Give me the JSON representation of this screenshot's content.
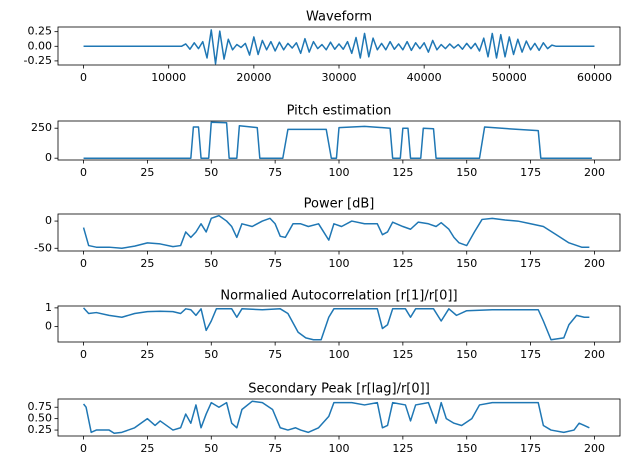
{
  "chart_data": [
    {
      "type": "line",
      "title": "Waveform",
      "x": [
        0,
        500,
        1000,
        1500,
        2000,
        2500,
        3000,
        3500,
        4000,
        4500,
        5000,
        5500,
        6000,
        6500,
        7000,
        7500,
        8000,
        8500,
        9000,
        9500,
        10000,
        10500,
        11000,
        11500,
        12000,
        12500,
        13000,
        13500,
        14000,
        14500,
        15000,
        15500,
        16000,
        16500,
        17000,
        17500,
        18000,
        18500,
        19000,
        19500,
        20000,
        20500,
        21000,
        21500,
        22000,
        22500,
        23000,
        23500,
        24000,
        24500,
        25000,
        25500,
        26000,
        26500,
        27000,
        27500,
        28000,
        28500,
        29000,
        29500,
        30000,
        30500,
        31000,
        31500,
        32000,
        32500,
        33000,
        33500,
        34000,
        34500,
        35000,
        35500,
        36000,
        36500,
        37000,
        37500,
        38000,
        38500,
        39000,
        39500,
        40000,
        40500,
        41000,
        41500,
        42000,
        42500,
        43000,
        43500,
        44000,
        44500,
        45000,
        45500,
        46000,
        46500,
        47000,
        47500,
        48000,
        48500,
        49000,
        49500,
        50000,
        50500,
        51000,
        51500,
        52000,
        52500,
        53000,
        53500,
        54000,
        54500,
        55000,
        55500,
        56000,
        56500,
        57000,
        57500,
        58000,
        58500,
        59000,
        59500,
        60000
      ],
      "series": [
        {
          "color": "#1f77b4",
          "values": [
            0,
            0,
            0,
            0,
            0,
            0,
            0,
            0,
            0,
            0,
            0,
            0,
            0,
            0,
            0,
            0,
            0,
            0,
            0,
            0,
            0,
            0,
            0,
            0,
            0.04,
            -0.05,
            0.06,
            -0.04,
            0.08,
            -0.2,
            0.28,
            -0.3,
            0.26,
            -0.22,
            0.12,
            -0.06,
            0.03,
            -0.02,
            0.05,
            -0.15,
            0.16,
            -0.14,
            0.1,
            -0.06,
            0.08,
            -0.08,
            0.07,
            -0.06,
            0.05,
            -0.03,
            0.06,
            -0.12,
            0.13,
            -0.1,
            0.08,
            -0.04,
            0.03,
            -0.06,
            0.07,
            -0.05,
            0.04,
            -0.05,
            0.08,
            -0.12,
            0.15,
            -0.2,
            0.22,
            -0.18,
            0.14,
            -0.06,
            0.05,
            -0.06,
            0.08,
            -0.05,
            0.04,
            -0.06,
            0.08,
            -0.07,
            0.06,
            -0.04,
            0.06,
            -0.1,
            0.1,
            -0.06,
            0.03,
            -0.04,
            0.04,
            -0.03,
            0.03,
            -0.05,
            0.05,
            -0.04,
            0.05,
            -0.08,
            0.14,
            -0.18,
            0.22,
            -0.2,
            0.2,
            -0.18,
            0.16,
            -0.14,
            0.12,
            -0.1,
            0.09,
            -0.06,
            0.05,
            -0.07,
            0.06,
            -0.04,
            0.02,
            0,
            0,
            0,
            0,
            0,
            0,
            0,
            0,
            0,
            0
          ]
        }
      ],
      "xlim": [
        -3000,
        63000
      ],
      "xticks": [
        0,
        10000,
        20000,
        30000,
        40000,
        50000,
        60000
      ],
      "ylim": [
        -0.32,
        0.33
      ],
      "yticks": [
        {
          "value": -0.25,
          "label": "-0.25"
        },
        {
          "value": 0,
          "label": "0.00"
        },
        0.25
      ]
    },
    {
      "type": "line",
      "title": "Pitch estimation",
      "x": [
        0,
        42,
        43,
        45,
        46,
        49,
        50,
        56,
        57,
        60,
        61,
        68,
        69,
        78,
        80,
        95,
        97,
        99,
        100,
        110,
        120,
        121,
        124,
        125,
        127,
        128,
        132,
        133,
        137,
        138,
        155,
        157,
        170,
        178,
        179,
        199
      ],
      "series": [
        {
          "color": "#1f77b4",
          "values": [
            0,
            0,
            260,
            260,
            0,
            0,
            300,
            295,
            0,
            0,
            270,
            255,
            0,
            0,
            240,
            240,
            0,
            0,
            255,
            265,
            250,
            0,
            0,
            250,
            250,
            0,
            0,
            250,
            245,
            0,
            0,
            260,
            240,
            230,
            0,
            0
          ]
        }
      ],
      "xlim": [
        -10,
        210
      ],
      "xticks": [
        0,
        25,
        50,
        75,
        100,
        125,
        150,
        175,
        200
      ],
      "ylim": [
        -15,
        310
      ],
      "yticks": [
        0,
        250
      ]
    },
    {
      "type": "line",
      "title": "Power [dB]",
      "x": [
        0,
        2,
        5,
        10,
        15,
        20,
        25,
        30,
        35,
        38,
        40,
        42,
        44,
        46,
        48,
        50,
        53,
        56,
        58,
        60,
        62,
        66,
        70,
        73,
        75,
        77,
        79,
        82,
        85,
        88,
        92,
        94,
        96,
        98,
        101,
        105,
        110,
        115,
        117,
        119,
        121,
        125,
        128,
        131,
        135,
        138,
        140,
        143,
        145,
        147,
        150,
        153,
        156,
        160,
        165,
        170,
        175,
        180,
        185,
        190,
        195,
        198
      ],
      "series": [
        {
          "color": "#1f77b4",
          "values": [
            -12,
            -45,
            -48,
            -48,
            -50,
            -46,
            -40,
            -42,
            -47,
            -45,
            -20,
            -30,
            -20,
            -5,
            -20,
            5,
            10,
            0,
            -10,
            -30,
            -5,
            -10,
            0,
            5,
            -5,
            -28,
            -30,
            -5,
            -5,
            -10,
            -5,
            -20,
            -35,
            -5,
            -10,
            0,
            -5,
            -5,
            -25,
            -20,
            -2,
            -10,
            -15,
            -2,
            -5,
            -10,
            -3,
            -15,
            -30,
            -40,
            -45,
            -20,
            3,
            5,
            2,
            0,
            -5,
            -10,
            -25,
            -40,
            -48,
            -48
          ]
        }
      ],
      "xlim": [
        -10,
        210
      ],
      "xticks": [
        0,
        25,
        50,
        75,
        100,
        125,
        150,
        175,
        200
      ],
      "ylim": [
        -55,
        13
      ],
      "yticks": [
        -50,
        0
      ]
    },
    {
      "type": "line",
      "title": "Normalied Autocorrelation [r[1]/r[0]]",
      "x": [
        0,
        2,
        5,
        10,
        15,
        20,
        25,
        30,
        35,
        38,
        40,
        42,
        44,
        46,
        48,
        50,
        52,
        58,
        60,
        62,
        70,
        77,
        80,
        84,
        87,
        90,
        93,
        96,
        98,
        110,
        115,
        117,
        119,
        121,
        126,
        128,
        130,
        137,
        140,
        143,
        146,
        150,
        160,
        170,
        178,
        180,
        183,
        188,
        190,
        193,
        196,
        198
      ],
      "series": [
        {
          "color": "#1f77b4",
          "values": [
            1.0,
            0.7,
            0.75,
            0.6,
            0.5,
            0.7,
            0.8,
            0.82,
            0.8,
            0.7,
            0.95,
            0.9,
            0.6,
            0.95,
            -0.2,
            0.3,
            0.95,
            0.95,
            0.5,
            0.95,
            0.9,
            0.95,
            0.7,
            -0.3,
            -0.6,
            -0.7,
            -0.7,
            0.5,
            0.95,
            0.95,
            0.95,
            -0.1,
            0.1,
            0.95,
            0.95,
            0.5,
            0.95,
            0.95,
            0.3,
            0.95,
            0.6,
            0.85,
            0.9,
            0.9,
            0.9,
            0.3,
            -0.7,
            -0.6,
            0.1,
            0.6,
            0.5,
            0.5
          ]
        }
      ],
      "xlim": [
        -10,
        210
      ],
      "xticks": [
        0,
        25,
        50,
        75,
        100,
        125,
        150,
        175,
        200
      ],
      "ylim": [
        -0.82,
        1.1
      ],
      "yticks": [
        0,
        1
      ]
    },
    {
      "type": "line",
      "title": "Secondary Peak [r[lag]/r[0]]",
      "x": [
        0,
        1,
        3,
        5,
        10,
        12,
        15,
        20,
        25,
        28,
        30,
        35,
        38,
        40,
        42,
        44,
        46,
        48,
        50,
        53,
        56,
        58,
        60,
        62,
        66,
        70,
        74,
        77,
        80,
        83,
        85,
        88,
        92,
        96,
        98,
        105,
        110,
        115,
        117,
        119,
        121,
        126,
        128,
        130,
        135,
        138,
        140,
        142,
        145,
        148,
        152,
        155,
        160,
        170,
        178,
        180,
        183,
        188,
        192,
        194,
        196,
        198
      ],
      "series": [
        {
          "color": "#1f77b4",
          "values": [
            0.82,
            0.75,
            0.2,
            0.25,
            0.25,
            0.18,
            0.2,
            0.3,
            0.5,
            0.35,
            0.45,
            0.25,
            0.3,
            0.6,
            0.4,
            0.8,
            0.3,
            0.6,
            0.85,
            0.75,
            0.85,
            0.4,
            0.3,
            0.7,
            0.88,
            0.85,
            0.7,
            0.3,
            0.25,
            0.3,
            0.25,
            0.2,
            0.3,
            0.55,
            0.85,
            0.85,
            0.8,
            0.85,
            0.3,
            0.35,
            0.85,
            0.8,
            0.45,
            0.8,
            0.85,
            0.4,
            0.85,
            0.5,
            0.4,
            0.35,
            0.5,
            0.8,
            0.85,
            0.85,
            0.85,
            0.35,
            0.25,
            0.2,
            0.25,
            0.4,
            0.35,
            0.3
          ]
        }
      ],
      "xlim": [
        -10,
        210
      ],
      "xticks": [
        0,
        25,
        50,
        75,
        100,
        125,
        150,
        175,
        200
      ],
      "ylim": [
        0.12,
        0.93
      ],
      "yticks": [
        0.25,
        {
          "value": 0.5,
          "label": "0.50"
        },
        0.75
      ]
    }
  ]
}
